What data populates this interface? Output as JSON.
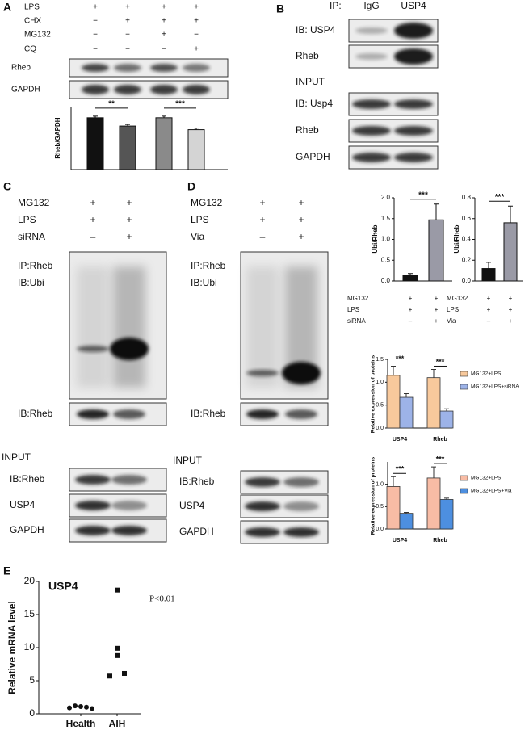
{
  "panels": {
    "A": {
      "letter": "A",
      "treatments": [
        [
          "LPS",
          "+",
          "+",
          "+",
          "+"
        ],
        [
          "CHX",
          "−",
          "+",
          "+",
          "+"
        ],
        [
          "MG132",
          "−",
          "−",
          "+",
          "−"
        ],
        [
          "CQ",
          "−",
          "−",
          "−",
          "+"
        ]
      ],
      "blots": [
        "Rheb",
        "GAPDH"
      ]
    },
    "B": {
      "letter": "B",
      "ip_label": "IP:",
      "lanes": [
        "IgG",
        "USP4"
      ],
      "blots": [
        "IB: USP4",
        "Rheb"
      ],
      "input_label": "INPUT",
      "input_blots": [
        "IB: Usp4",
        "Rheb",
        "GAPDH"
      ]
    },
    "C": {
      "letter": "C",
      "treatments": [
        [
          "MG132",
          "+",
          "+"
        ],
        [
          "LPS",
          "+",
          "+"
        ],
        [
          "siRNA",
          "–",
          "+"
        ]
      ],
      "ip_labels": [
        "IP:Rheb",
        "IB:Ubi"
      ],
      "blots": [
        "IB:Rheb"
      ],
      "input_label": "INPUT",
      "input_blots": [
        "IB:Rheb",
        "USP4",
        "GAPDH"
      ]
    },
    "D": {
      "letter": "D",
      "treatments": [
        [
          "MG132",
          "+",
          "+"
        ],
        [
          "LPS",
          "+",
          "+"
        ],
        [
          "Via",
          "–",
          "+"
        ]
      ],
      "ip_labels": [
        "IP:Rheb",
        "IB:Ubi"
      ],
      "blots": [
        "IB:Rheb"
      ],
      "input_label": "INPUT",
      "input_blots": [
        "IB:Rheb",
        "USP4",
        "GAPDH"
      ]
    },
    "E": {
      "letter": "E"
    }
  },
  "chart_data": [
    {
      "type": "bar",
      "y_label": "Rheb/GAPDH",
      "values": [
        1.0,
        0.84,
        1.0,
        0.77
      ],
      "errors": [
        0.03,
        0.03,
        0.03,
        0.03
      ],
      "colors": [
        "#111111",
        "#555555",
        "#8a8a8a",
        "#d4d4d4"
      ],
      "ylim": [
        0,
        1.2
      ],
      "significance": [
        "**",
        "***"
      ]
    },
    {
      "type": "bar",
      "y_label": "Ubi/Rheb",
      "values": [
        0.13,
        1.47
      ],
      "errors": [
        0.05,
        0.38
      ],
      "colors": [
        "#111111",
        "#9a9aa6"
      ],
      "ylim": [
        0,
        2
      ],
      "yticks": [
        {
          "value": 0,
          "label": "0.0"
        },
        {
          "value": 0.5,
          "label": "0.5"
        },
        {
          "value": 1,
          "label": "1.0"
        },
        {
          "value": 1.5,
          "label": "1.5"
        },
        {
          "value": 2,
          "label": "2.0"
        }
      ],
      "significance": [
        "***"
      ],
      "treatments": [
        [
          "MG132",
          "+",
          "+"
        ],
        [
          "LPS",
          "+",
          "+"
        ],
        [
          "siRNA",
          "–",
          "+"
        ]
      ]
    },
    {
      "type": "bar",
      "y_label": "Ubi/Rheb",
      "values": [
        0.12,
        0.56
      ],
      "errors": [
        0.06,
        0.16
      ],
      "colors": [
        "#111111",
        "#9a9aa6"
      ],
      "ylim": [
        0,
        0.8
      ],
      "yticks": [
        {
          "value": 0,
          "label": "0.0"
        },
        {
          "value": 0.2,
          "label": "0.2"
        },
        {
          "value": 0.4,
          "label": "0.4"
        },
        {
          "value": 0.6,
          "label": "0.6"
        },
        {
          "value": 0.8,
          "label": "0.8"
        }
      ],
      "significance": [
        "***"
      ],
      "treatments": [
        [
          "MG132",
          "+",
          "+"
        ],
        [
          "LPS",
          "+",
          "+"
        ],
        [
          "Via",
          "–",
          "+"
        ]
      ]
    },
    {
      "type": "grouped_bar",
      "y_label": "Relative expression of proteins",
      "categories": [
        "USP4",
        "Rheb"
      ],
      "series": [
        {
          "name": "MG132+LPS",
          "color": "#f8c99c",
          "values": [
            1.15,
            1.1
          ],
          "errors": [
            0.2,
            0.18
          ]
        },
        {
          "name": "MG132+LPS+siRNA",
          "color": "#9db3e8",
          "values": [
            0.67,
            0.37
          ],
          "errors": [
            0.08,
            0.05
          ]
        }
      ],
      "ylim": [
        0,
        1.5
      ],
      "yticks": [
        {
          "value": 0,
          "label": "0.0"
        },
        {
          "value": 0.5,
          "label": "0.5"
        },
        {
          "value": 1,
          "label": "1.0"
        },
        {
          "value": 1.5,
          "label": "1.5"
        }
      ],
      "significance": [
        "***",
        "***"
      ]
    },
    {
      "type": "grouped_bar",
      "y_label": "Relative expression of proteins",
      "categories": [
        "USP4",
        "Rheb"
      ],
      "series": [
        {
          "name": "MG132+LPS",
          "color": "#f8bca5",
          "values": [
            0.95,
            1.14
          ],
          "errors": [
            0.22,
            0.25
          ]
        },
        {
          "name": "MG132+LPS+Via",
          "color": "#4d8fe0",
          "values": [
            0.35,
            0.66
          ],
          "errors": [
            0.02,
            0.03
          ]
        }
      ],
      "ylim": [
        0,
        1.5
      ],
      "yticks": [
        {
          "value": 0,
          "label": "0.0"
        },
        {
          "value": 0.5,
          "label": "0.5"
        },
        {
          "value": 1,
          "label": "1.0"
        }
      ],
      "significance": [
        "***",
        "***"
      ]
    },
    {
      "type": "scatter",
      "title": "USP4",
      "y_label": "Relative mRNA level",
      "categories": [
        "Health",
        "AIH"
      ],
      "values": [
        [
          0.9,
          1.2,
          1.1,
          1.0,
          0.8
        ],
        [
          5.7,
          8.8,
          9.9,
          6.1,
          18.7
        ]
      ],
      "markers": [
        "circle",
        "square"
      ],
      "color": "#111111",
      "ylim": [
        0,
        20
      ],
      "yticks": [
        0,
        5,
        10,
        15,
        20
      ],
      "annotation": "P<0.01"
    }
  ]
}
